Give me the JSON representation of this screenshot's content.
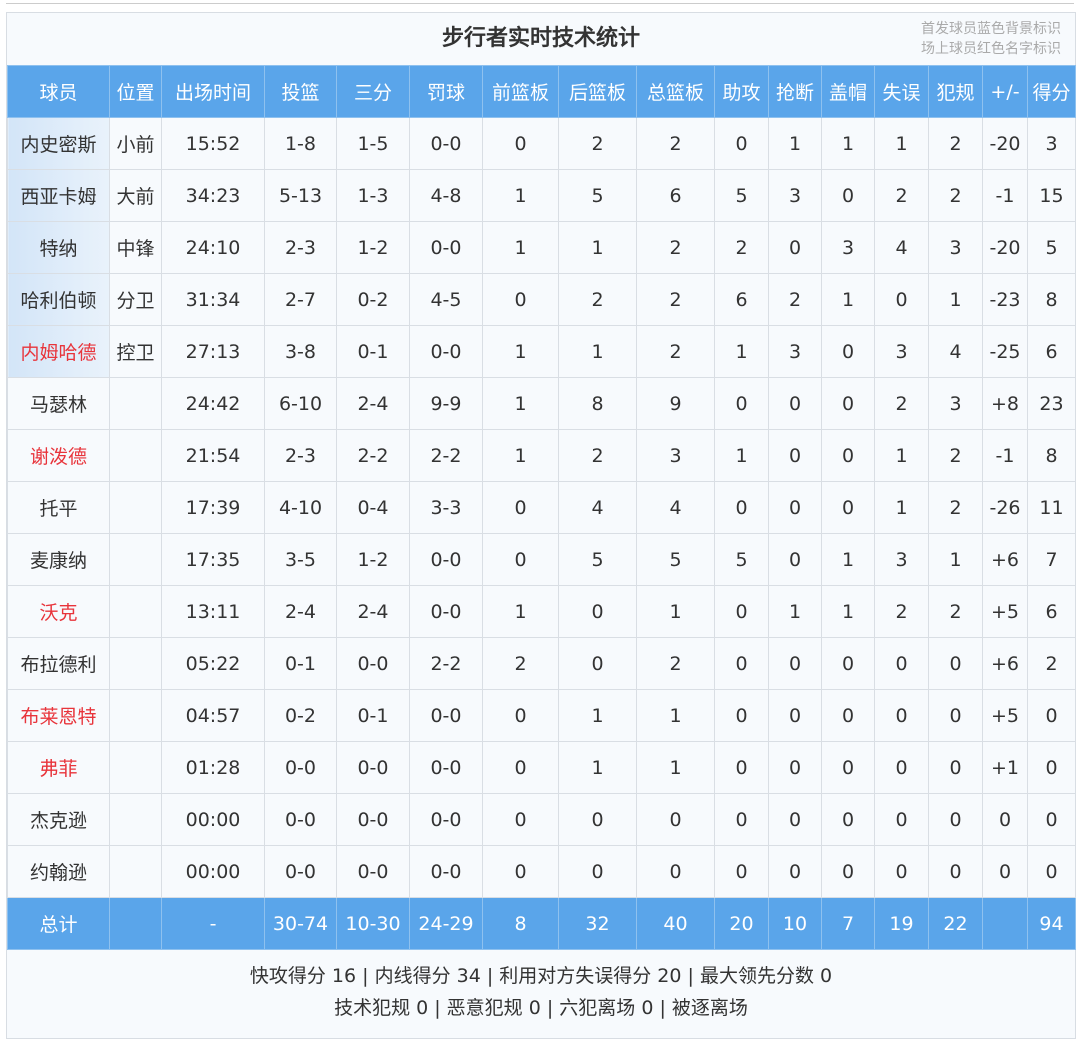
{
  "title": "步行者实时技术统计",
  "legend": [
    "首发球员蓝色背景标识",
    "场上球员红色名字标识"
  ],
  "colors": {
    "header_bg": "#5aa5ea",
    "starter_bg": "#d3e5f8",
    "on_court_name": "#e8343b"
  },
  "columns": [
    "球员",
    "位置",
    "出场时间",
    "投篮",
    "三分",
    "罚球",
    "前篮板",
    "后篮板",
    "总篮板",
    "助攻",
    "抢断",
    "盖帽",
    "失误",
    "犯规",
    "+/-",
    "得分"
  ],
  "players": [
    {
      "name": "内史密斯",
      "pos": "小前",
      "starter": true,
      "on_court": false,
      "stats": [
        "15:52",
        "1-8",
        "1-5",
        "0-0",
        "0",
        "2",
        "2",
        "0",
        "1",
        "1",
        "1",
        "2",
        "-20",
        "3"
      ]
    },
    {
      "name": "西亚卡姆",
      "pos": "大前",
      "starter": true,
      "on_court": false,
      "stats": [
        "34:23",
        "5-13",
        "1-3",
        "4-8",
        "1",
        "5",
        "6",
        "5",
        "3",
        "0",
        "2",
        "2",
        "-1",
        "15"
      ]
    },
    {
      "name": "特纳",
      "pos": "中锋",
      "starter": true,
      "on_court": false,
      "stats": [
        "24:10",
        "2-3",
        "1-2",
        "0-0",
        "1",
        "1",
        "2",
        "2",
        "0",
        "3",
        "4",
        "3",
        "-20",
        "5"
      ]
    },
    {
      "name": "哈利伯顿",
      "pos": "分卫",
      "starter": true,
      "on_court": false,
      "stats": [
        "31:34",
        "2-7",
        "0-2",
        "4-5",
        "0",
        "2",
        "2",
        "6",
        "2",
        "1",
        "0",
        "1",
        "-23",
        "8"
      ]
    },
    {
      "name": "内姆哈德",
      "pos": "控卫",
      "starter": true,
      "on_court": true,
      "stats": [
        "27:13",
        "3-8",
        "0-1",
        "0-0",
        "1",
        "1",
        "2",
        "1",
        "3",
        "0",
        "3",
        "4",
        "-25",
        "6"
      ]
    },
    {
      "name": "马瑟林",
      "pos": "",
      "starter": false,
      "on_court": false,
      "stats": [
        "24:42",
        "6-10",
        "2-4",
        "9-9",
        "1",
        "8",
        "9",
        "0",
        "0",
        "0",
        "2",
        "3",
        "+8",
        "23"
      ]
    },
    {
      "name": "谢泼德",
      "pos": "",
      "starter": false,
      "on_court": true,
      "stats": [
        "21:54",
        "2-3",
        "2-2",
        "2-2",
        "1",
        "2",
        "3",
        "1",
        "0",
        "0",
        "1",
        "2",
        "-1",
        "8"
      ]
    },
    {
      "name": "托平",
      "pos": "",
      "starter": false,
      "on_court": false,
      "stats": [
        "17:39",
        "4-10",
        "0-4",
        "3-3",
        "0",
        "4",
        "4",
        "0",
        "0",
        "0",
        "1",
        "2",
        "-26",
        "11"
      ]
    },
    {
      "name": "麦康纳",
      "pos": "",
      "starter": false,
      "on_court": false,
      "stats": [
        "17:35",
        "3-5",
        "1-2",
        "0-0",
        "0",
        "5",
        "5",
        "5",
        "0",
        "1",
        "3",
        "1",
        "+6",
        "7"
      ]
    },
    {
      "name": "沃克",
      "pos": "",
      "starter": false,
      "on_court": true,
      "stats": [
        "13:11",
        "2-4",
        "2-4",
        "0-0",
        "1",
        "0",
        "1",
        "0",
        "1",
        "1",
        "2",
        "2",
        "+5",
        "6"
      ]
    },
    {
      "name": "布拉德利",
      "pos": "",
      "starter": false,
      "on_court": false,
      "stats": [
        "05:22",
        "0-1",
        "0-0",
        "2-2",
        "2",
        "0",
        "2",
        "0",
        "0",
        "0",
        "0",
        "0",
        "+6",
        "2"
      ]
    },
    {
      "name": "布莱恩特",
      "pos": "",
      "starter": false,
      "on_court": true,
      "stats": [
        "04:57",
        "0-2",
        "0-1",
        "0-0",
        "0",
        "1",
        "1",
        "0",
        "0",
        "0",
        "0",
        "0",
        "+5",
        "0"
      ]
    },
    {
      "name": "弗菲",
      "pos": "",
      "starter": false,
      "on_court": true,
      "stats": [
        "01:28",
        "0-0",
        "0-0",
        "0-0",
        "0",
        "1",
        "1",
        "0",
        "0",
        "0",
        "0",
        "0",
        "+1",
        "0"
      ]
    },
    {
      "name": "杰克逊",
      "pos": "",
      "starter": false,
      "on_court": false,
      "stats": [
        "00:00",
        "0-0",
        "0-0",
        "0-0",
        "0",
        "0",
        "0",
        "0",
        "0",
        "0",
        "0",
        "0",
        "0",
        "0"
      ]
    },
    {
      "name": "约翰逊",
      "pos": "",
      "starter": false,
      "on_court": false,
      "stats": [
        "00:00",
        "0-0",
        "0-0",
        "0-0",
        "0",
        "0",
        "0",
        "0",
        "0",
        "0",
        "0",
        "0",
        "0",
        "0"
      ]
    }
  ],
  "totals": {
    "label": "总计",
    "pos": "",
    "stats": [
      "-",
      "30-74",
      "10-30",
      "24-29",
      "8",
      "32",
      "40",
      "20",
      "10",
      "7",
      "19",
      "22",
      "",
      "94"
    ]
  },
  "footer": [
    "快攻得分 16 | 内线得分 34 | 利用对方失误得分 20 | 最大领先分数 0",
    "技术犯规 0 | 恶意犯规 0 | 六犯离场 0 | 被逐离场"
  ]
}
